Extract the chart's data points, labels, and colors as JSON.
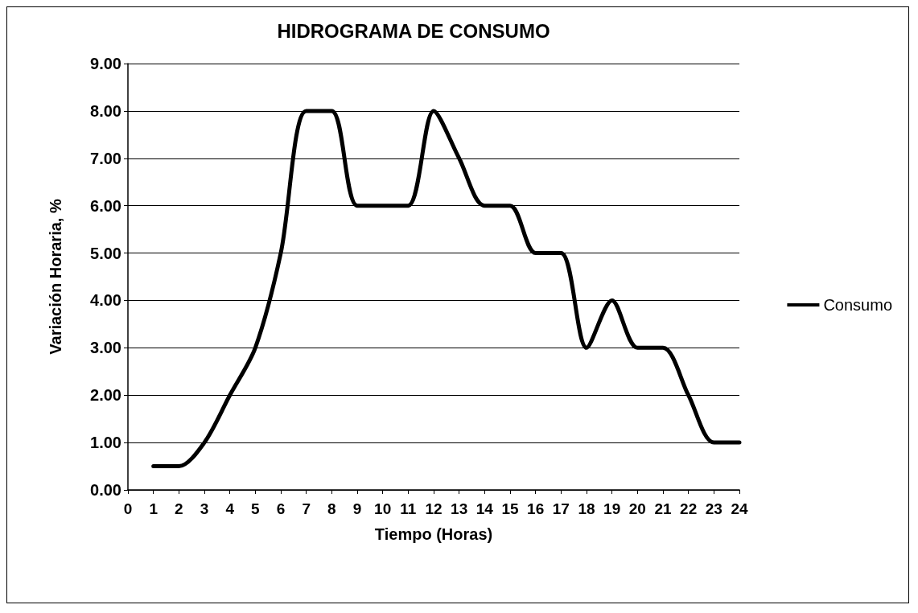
{
  "chart_data": {
    "type": "line",
    "title": "HIDROGRAMA DE CONSUMO",
    "xlabel": "Tiempo (Horas)",
    "ylabel": "Variación Horaria, %",
    "x": [
      1,
      2,
      3,
      4,
      5,
      6,
      7,
      8,
      9,
      10,
      11,
      12,
      13,
      14,
      15,
      16,
      17,
      18,
      19,
      20,
      21,
      22,
      23,
      24
    ],
    "series": [
      {
        "name": "Consumo",
        "color": "#000000",
        "values": [
          0.5,
          0.5,
          1.0,
          2.0,
          3.0,
          5.0,
          8.0,
          8.0,
          6.0,
          6.0,
          6.0,
          8.0,
          7.0,
          6.0,
          6.0,
          5.0,
          5.0,
          3.0,
          4.0,
          3.0,
          3.0,
          2.0,
          1.0,
          1.0
        ]
      }
    ],
    "xlim": [
      0,
      24
    ],
    "xticks": [
      0,
      1,
      2,
      3,
      4,
      5,
      6,
      7,
      8,
      9,
      10,
      11,
      12,
      13,
      14,
      15,
      16,
      17,
      18,
      19,
      20,
      21,
      22,
      23,
      24
    ],
    "ylim": [
      0,
      9
    ],
    "yticks": [
      {
        "value": 0,
        "label": "0.00"
      },
      {
        "value": 1,
        "label": "1.00"
      },
      {
        "value": 2,
        "label": "2.00"
      },
      {
        "value": 3,
        "label": "3.00"
      },
      {
        "value": 4,
        "label": "4.00"
      },
      {
        "value": 5,
        "label": "5.00"
      },
      {
        "value": 6,
        "label": "6.00"
      },
      {
        "value": 7,
        "label": "7.00"
      },
      {
        "value": 8,
        "label": "8.00"
      },
      {
        "value": 9,
        "label": "9.00"
      }
    ],
    "grid": "y",
    "legend": "right",
    "marker": "none",
    "line_style": "solid"
  }
}
